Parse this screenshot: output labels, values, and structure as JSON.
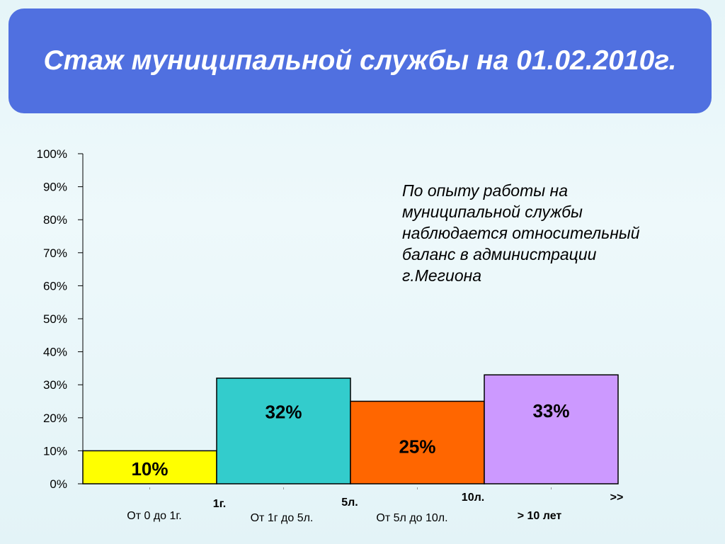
{
  "header": {
    "title": "Стаж муниципальной службы на 01.02.2010г."
  },
  "note": {
    "text": "По опыту работы на муниципальной службы наблюдается относительный баланс в администрации г.Мегиона"
  },
  "chart_data": {
    "type": "bar",
    "title": "",
    "xlabel": "",
    "ylabel": "",
    "ylim": [
      0,
      100
    ],
    "y_ticks": [
      "0%",
      "10%",
      "20%",
      "30%",
      "40%",
      "50%",
      "60%",
      "70%",
      "80%",
      "90%",
      "100%"
    ],
    "categories": [
      "От 0 до 1г.",
      "От 1г до 5л.",
      "От 5л до 10л.",
      "> 10 лет"
    ],
    "values": [
      10,
      32,
      25,
      33
    ],
    "value_labels": [
      "10%",
      "32%",
      "25%",
      "33%"
    ],
    "bar_colors": [
      "#ffff00",
      "#33cccc",
      "#ff6600",
      "#cc99ff"
    ],
    "boundary_labels": [
      "1г.",
      "5л.",
      "10л.",
      ">>"
    ],
    "grid": false,
    "legend": "none"
  }
}
